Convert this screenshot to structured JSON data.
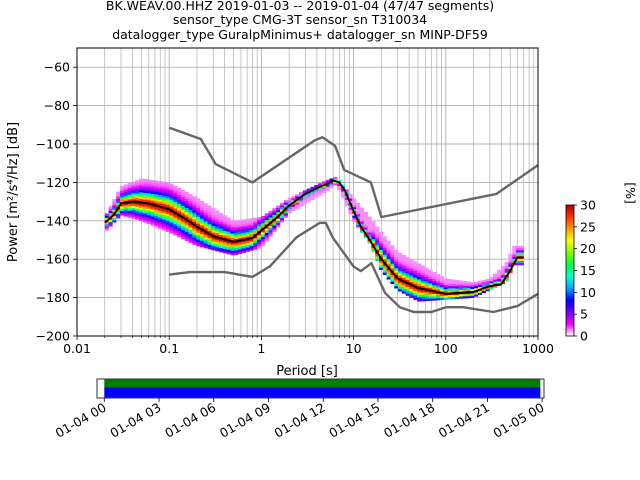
{
  "chart_data": {
    "type": "heatmap",
    "title": [
      "BK.WEAV.00.HHZ   2019-01-03 -- 2019-01-04  (47/47 segments)",
      "sensor_type CMG-3T sensor_sn T310034",
      "datalogger_type GuralpMinimus+ datalogger_sn MINP-DF59"
    ],
    "xlabel": "Period [s]",
    "ylabel": "Power [m²/s⁴/Hz] [dB]",
    "x_scale": "log",
    "xlim": [
      0.01,
      1000
    ],
    "ylim": [
      -200,
      -50
    ],
    "x_ticks": [
      0.01,
      0.1,
      1,
      10,
      100,
      1000
    ],
    "x_tick_labels": [
      "0.01",
      "0.1",
      "1",
      "10",
      "100",
      "1000"
    ],
    "y_ticks": [
      -200,
      -180,
      -160,
      -140,
      -120,
      -100,
      -80,
      -60
    ],
    "y_tick_labels": [
      "−200",
      "−180",
      "−160",
      "−140",
      "−120",
      "−100",
      "−80",
      "−60"
    ],
    "grid": true,
    "colorbar": {
      "label": "[%]",
      "range": [
        0,
        30
      ],
      "ticks": [
        "0",
        "5",
        "10",
        "15",
        "20",
        "25",
        "30"
      ],
      "colors": [
        "#ffffff",
        "#f000ff",
        "#7000ff",
        "#0000ff",
        "#00a0ff",
        "#00ffd0",
        "#00ff40",
        "#80ff00",
        "#ffff00",
        "#ffa000",
        "#ff3000",
        "#b00000"
      ]
    },
    "series": [
      {
        "role": "NHNM",
        "color": "#666666",
        "x": [
          0.1,
          0.22,
          0.32,
          0.8,
          3.8,
          4.6,
          6.3,
          7.9,
          15.4,
          20,
          354.8,
          1000
        ],
        "y": [
          -91.5,
          -97.4,
          -110.5,
          -120,
          -98,
          -96.5,
          -101,
          -113.5,
          -120,
          -138,
          -126,
          -111
        ]
      },
      {
        "role": "NLNM",
        "color": "#666666",
        "x": [
          0.1,
          0.17,
          0.4,
          0.8,
          1.24,
          2.4,
          4.3,
          5,
          6,
          10,
          12,
          15.6,
          21.9,
          31.6,
          45,
          70,
          101,
          154,
          328,
          600,
          1000
        ],
        "y": [
          -168,
          -166.7,
          -166.7,
          -169.2,
          -163.7,
          -148.6,
          -141.1,
          -141.1,
          -149,
          -163.8,
          -166.2,
          -162.1,
          -177.5,
          -185,
          -187.5,
          -187.5,
          -185,
          -185,
          -187.5,
          -184.4,
          -178
        ]
      },
      {
        "role": "mean",
        "color": "#000000",
        "x": [
          0.02,
          0.025,
          0.03,
          0.04,
          0.06,
          0.1,
          0.15,
          0.2,
          0.3,
          0.5,
          0.8,
          1,
          1.5,
          2,
          3,
          4,
          5,
          6,
          7,
          8,
          10,
          12,
          15,
          20,
          30,
          50,
          100,
          200,
          300,
          400,
          500,
          600,
          700
        ],
        "y": [
          -141,
          -137,
          -131,
          -130,
          -131,
          -134,
          -139,
          -143,
          -148,
          -151,
          -149,
          -145,
          -138,
          -132,
          -126,
          -123,
          -121,
          -119,
          -120,
          -124,
          -135,
          -143,
          -150,
          -160,
          -170,
          -175,
          -178,
          -177,
          -174,
          -173,
          -166,
          -159,
          -159
        ]
      }
    ],
    "ppsd_band": {
      "x": [
        0.02,
        0.03,
        0.05,
        0.1,
        0.2,
        0.5,
        1,
        2,
        5,
        6.5,
        10,
        15,
        20,
        30,
        50,
        100,
        200,
        300,
        450,
        550,
        700
      ],
      "upper": [
        -138,
        -122,
        -118,
        -120,
        -128,
        -140,
        -138,
        -128,
        -119,
        -117,
        -128,
        -138,
        -146,
        -156,
        -162,
        -170,
        -172,
        -170,
        -162,
        -153,
        -153
      ],
      "lower": [
        -146,
        -137,
        -140,
        -146,
        -153,
        -158,
        -154,
        -136,
        -125,
        -121,
        -140,
        -152,
        -166,
        -176,
        -182,
        -181,
        -180,
        -176,
        -172,
        -163,
        -163
      ]
    },
    "time_coverage": {
      "tick_labels": [
        "01-04 00",
        "01-04 03",
        "01-04 06",
        "01-04 09",
        "01-04 12",
        "01-04 15",
        "01-04 18",
        "01-04 21",
        "01-05 00"
      ],
      "span_hours": [
        -0.4,
        24.1
      ],
      "covered_hours": [
        0,
        23.9
      ]
    }
  }
}
